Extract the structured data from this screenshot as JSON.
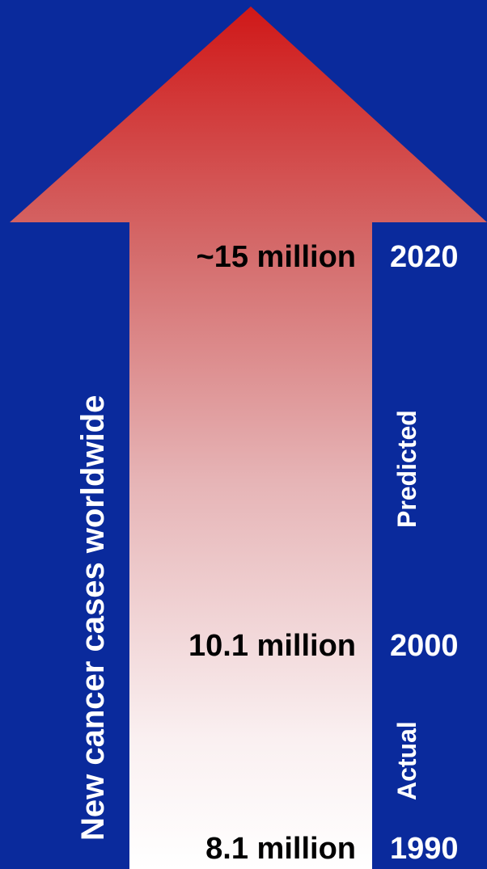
{
  "title": "New cancer cases worldwide",
  "colors": {
    "background": "#0a2a9c",
    "arrow_top": "#d01818",
    "arrow_bottom": "#ffffff",
    "value_text": "#000000",
    "year_text": "#ffffff"
  },
  "milestones": [
    {
      "value": "~15 million",
      "year": "2020"
    },
    {
      "value": "10.1 million",
      "year": "2000"
    },
    {
      "value": "8.1 million",
      "year": "1990"
    }
  ],
  "phases": {
    "predicted": "Predicted",
    "actual": "Actual"
  }
}
